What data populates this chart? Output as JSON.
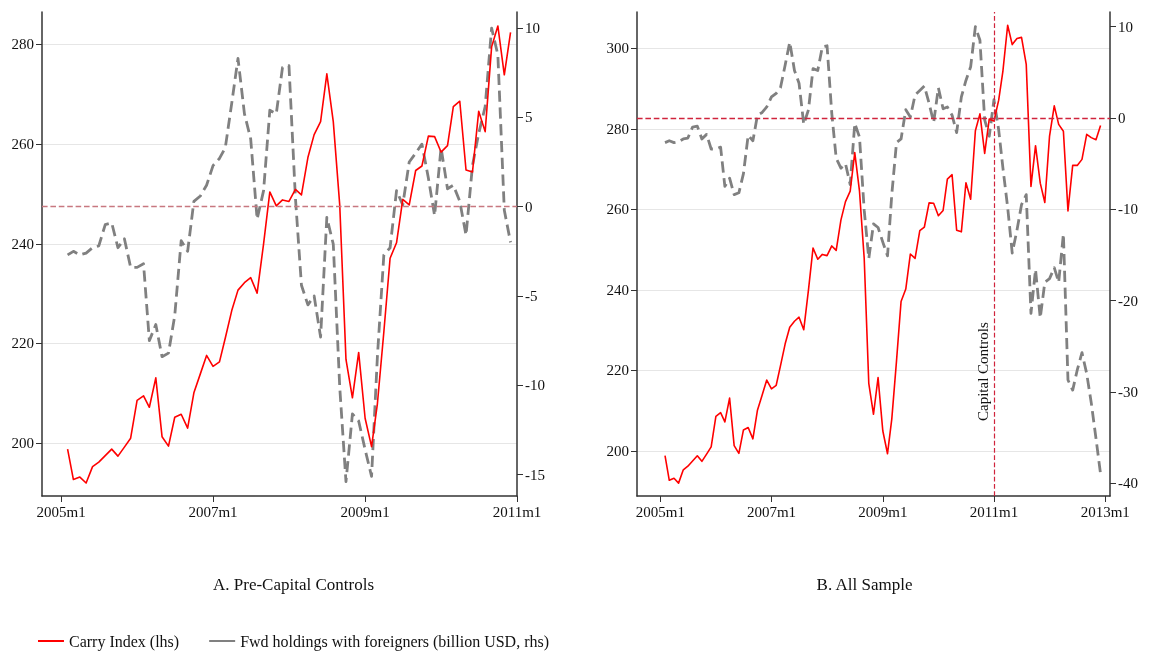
{
  "chart_data": [
    {
      "type": "line",
      "title": "A. Pre-Capital Controls",
      "x": [
        "2005-02",
        "2005-03",
        "2005-04",
        "2005-05",
        "2005-06",
        "2005-07",
        "2005-08",
        "2005-09",
        "2005-10",
        "2005-11",
        "2005-12",
        "2006-01",
        "2006-02",
        "2006-03",
        "2006-04",
        "2006-05",
        "2006-06",
        "2006-07",
        "2006-08",
        "2006-09",
        "2006-10",
        "2006-11",
        "2006-12",
        "2007-01",
        "2007-02",
        "2007-03",
        "2007-04",
        "2007-05",
        "2007-06",
        "2007-07",
        "2007-08",
        "2007-09",
        "2007-10",
        "2007-11",
        "2007-12",
        "2008-01",
        "2008-02",
        "2008-03",
        "2008-04",
        "2008-05",
        "2008-06",
        "2008-07",
        "2008-08",
        "2008-09",
        "2008-10",
        "2008-11",
        "2008-12",
        "2009-01",
        "2009-02",
        "2009-03",
        "2009-04",
        "2009-05",
        "2009-06",
        "2009-07",
        "2009-08",
        "2009-09",
        "2009-10",
        "2009-11",
        "2009-12",
        "2010-01",
        "2010-02",
        "2010-03",
        "2010-04",
        "2010-05",
        "2010-06",
        "2010-07",
        "2010-08",
        "2010-09",
        "2010-10",
        "2010-11",
        "2010-12"
      ],
      "series": [
        {
          "name": "Carry Index (lhs)",
          "color": "#ff0000",
          "line_style": "solid",
          "values": [
            198.8,
            192.7,
            193.2,
            192,
            195.3,
            196.2,
            197.5,
            198.8,
            197.4,
            199.2,
            201,
            208.6,
            209.5,
            207.2,
            213.1,
            201.3,
            199.4,
            205.2,
            205.8,
            203,
            210.1,
            213.9,
            217.6,
            215.4,
            216.3,
            221.1,
            226.6,
            230.7,
            232.2,
            233.2,
            230.1,
            240,
            250.4,
            247.6,
            248.8,
            248.5,
            250.9,
            249.8,
            257.3,
            261.9,
            264.5,
            274.1,
            264.5,
            247.8,
            216.8,
            209.1,
            218.2,
            205,
            199.3,
            207.9,
            222.3,
            237.1,
            240.2,
            248.9,
            247.8,
            254.7,
            255.6,
            261.6,
            261.5,
            258.4,
            259.7,
            267.5,
            268.6,
            254.8,
            254.4,
            266.6,
            262.5,
            279.5,
            283.7,
            273.9,
            282.4
          ]
        },
        {
          "name": "Fwd holdings with foreigners (billion USD, rhs)",
          "color": "#808080",
          "line_style": "dashed",
          "axis": "y2",
          "values": [
            -2.7,
            -2.5,
            -2.7,
            -2.6,
            -2.3,
            -2.2,
            -1,
            -0.9,
            -2.3,
            -1.8,
            -3.4,
            -3.4,
            -3.2,
            -7.5,
            -6.6,
            -8.4,
            -8.2,
            -6.1,
            -1.9,
            -2.5,
            0.3,
            0.6,
            1.2,
            2.3,
            2.7,
            3.3,
            5.8,
            8.3,
            5.2,
            3.8,
            -0.7,
            0.9,
            5.4,
            5.2,
            7.8,
            7.9,
            0.5,
            -4.4,
            -5.5,
            -5,
            -7.3,
            -0.6,
            -2.1,
            -10.1,
            -15.4,
            -11.6,
            -12,
            -13.6,
            -15.1,
            -8.4,
            -2.7,
            -2.3,
            0.9,
            0.1,
            2.5,
            3,
            3.5,
            1.6,
            -0.5,
            3.3,
            1,
            1.2,
            0.3,
            -1.6,
            2.3,
            4.1,
            5.6,
            10,
            8.5,
            -0.2,
            -2
          ]
        }
      ],
      "xlim": [
        "2004-10",
        "2011-01"
      ],
      "xticks": [
        {
          "value": "2005-01",
          "label": "2005m1"
        },
        {
          "value": "2007-01",
          "label": "2007m1"
        },
        {
          "value": "2009-01",
          "label": "2009m1"
        },
        {
          "value": "2011-01",
          "label": "2011m1"
        }
      ],
      "ylim": [
        189.4,
        286.5
      ],
      "yticks": [
        200,
        220,
        240,
        260,
        280
      ],
      "y2lim": [
        -16.2,
        10.9
      ],
      "y2ticks": [
        -15,
        -10,
        -5,
        0,
        5,
        10
      ],
      "ref_lines": [
        {
          "axis": "y2",
          "value": 0,
          "color": "#c87880",
          "line_style": "dashed"
        }
      ],
      "grid": "y",
      "marker": "none",
      "legend": "bottom"
    },
    {
      "type": "line",
      "title": "B. All Sample",
      "x": [
        "2005-02",
        "2005-03",
        "2005-04",
        "2005-05",
        "2005-06",
        "2005-07",
        "2005-08",
        "2005-09",
        "2005-10",
        "2005-11",
        "2005-12",
        "2006-01",
        "2006-02",
        "2006-03",
        "2006-04",
        "2006-05",
        "2006-06",
        "2006-07",
        "2006-08",
        "2006-09",
        "2006-10",
        "2006-11",
        "2006-12",
        "2007-01",
        "2007-02",
        "2007-03",
        "2007-04",
        "2007-05",
        "2007-06",
        "2007-07",
        "2007-08",
        "2007-09",
        "2007-10",
        "2007-11",
        "2007-12",
        "2008-01",
        "2008-02",
        "2008-03",
        "2008-04",
        "2008-05",
        "2008-06",
        "2008-07",
        "2008-08",
        "2008-09",
        "2008-10",
        "2008-11",
        "2008-12",
        "2009-01",
        "2009-02",
        "2009-03",
        "2009-04",
        "2009-05",
        "2009-06",
        "2009-07",
        "2009-08",
        "2009-09",
        "2009-10",
        "2009-11",
        "2009-12",
        "2010-01",
        "2010-02",
        "2010-03",
        "2010-04",
        "2010-05",
        "2010-06",
        "2010-07",
        "2010-08",
        "2010-09",
        "2010-10",
        "2010-11",
        "2010-12",
        "2011-01",
        "2011-02",
        "2011-03",
        "2011-04",
        "2011-05",
        "2011-06",
        "2011-07",
        "2011-08",
        "2011-09",
        "2011-10",
        "2011-11",
        "2011-12",
        "2012-01",
        "2012-02",
        "2012-03",
        "2012-04",
        "2012-05",
        "2012-06",
        "2012-07",
        "2012-08",
        "2012-09",
        "2012-10",
        "2012-11",
        "2012-12"
      ],
      "series": [
        {
          "color": "#ff0000",
          "line_style": "solid",
          "values": [
            198.8,
            192.7,
            193.2,
            192,
            195.3,
            196.2,
            197.5,
            198.8,
            197.4,
            199.2,
            201,
            208.6,
            209.5,
            207.2,
            213.1,
            201.3,
            199.4,
            205.2,
            205.8,
            203,
            210.1,
            213.9,
            217.6,
            215.4,
            216.3,
            221.1,
            226.6,
            230.7,
            232.2,
            233.2,
            230.1,
            240,
            250.4,
            247.6,
            248.8,
            248.5,
            250.9,
            249.8,
            257.3,
            261.9,
            264.5,
            274.1,
            264.5,
            247.8,
            216.8,
            209.1,
            218.2,
            205,
            199.3,
            207.9,
            222.3,
            237.1,
            240.2,
            248.9,
            247.8,
            254.7,
            255.6,
            261.6,
            261.5,
            258.4,
            259.7,
            267.5,
            268.6,
            254.8,
            254.4,
            266.6,
            262.5,
            279.5,
            283.7,
            273.9,
            282.4,
            281.9,
            287.1,
            294.4,
            305.7,
            300.9,
            302.4,
            302.7,
            296,
            265.7,
            275.8,
            266.5,
            261.7,
            278.2,
            285.7,
            281.1,
            279.4,
            259.6,
            270.9,
            270.9,
            272.4,
            278.6,
            277.8,
            277.3,
            280.8
          ]
        },
        {
          "color": "#808080",
          "line_style": "dashed",
          "axis": "y2",
          "values": [
            -2.7,
            -2.5,
            -2.7,
            -2.6,
            -2.3,
            -2.2,
            -1,
            -0.9,
            -2.3,
            -1.8,
            -3.4,
            -3.4,
            -3.2,
            -7.5,
            -6.6,
            -8.4,
            -8.2,
            -6.1,
            -1.9,
            -2.5,
            0.3,
            0.6,
            1.2,
            2.3,
            2.7,
            3.3,
            5.8,
            8.3,
            5.2,
            3.8,
            -0.7,
            0.9,
            5.4,
            5.2,
            7.8,
            7.9,
            0.5,
            -4.4,
            -5.5,
            -5,
            -7.3,
            -0.6,
            -2.1,
            -10.1,
            -15.4,
            -11.6,
            -12,
            -13.6,
            -15.1,
            -8.4,
            -2.7,
            -2.3,
            0.9,
            0.1,
            2.5,
            3,
            3.5,
            1.6,
            -0.5,
            3.3,
            1,
            1.2,
            0.3,
            -1.6,
            2.3,
            4.1,
            5.6,
            10,
            8.5,
            -0.2,
            -2,
            2,
            -1.3,
            -5.5,
            -9.8,
            -14.8,
            -12.3,
            -9.5,
            -8.4,
            -21.4,
            -16.6,
            -21.9,
            -18,
            -17.6,
            -16.4,
            -18,
            -12.7,
            -28.7,
            -29.8,
            -27.6,
            -25.7,
            -28,
            -31.2,
            -35.1,
            -39
          ]
        }
      ],
      "xlim": [
        "2004-08",
        "2013-02"
      ],
      "xticks": [
        {
          "value": "2005-01",
          "label": "2005m1"
        },
        {
          "value": "2007-01",
          "label": "2007m1"
        },
        {
          "value": "2009-01",
          "label": "2009m1"
        },
        {
          "value": "2011-01",
          "label": "2011m1"
        },
        {
          "value": "2013-01",
          "label": "2013m1"
        }
      ],
      "ylim": [
        188.8,
        309
      ],
      "yticks": [
        200,
        220,
        240,
        260,
        280,
        300
      ],
      "y2lim": [
        -41.4,
        11.6
      ],
      "y2ticks": [
        -40,
        -30,
        -20,
        -10,
        0,
        10
      ],
      "ref_lines": [
        {
          "axis": "y2",
          "value": 0,
          "color": "#d0243c",
          "line_style": "dashed"
        },
        {
          "axis": "x",
          "value": "2011-01",
          "label": "Capital Controls",
          "color": "#d0243c",
          "line_style": "dashed"
        }
      ],
      "grid": "y",
      "marker": "none",
      "legend": false
    }
  ]
}
